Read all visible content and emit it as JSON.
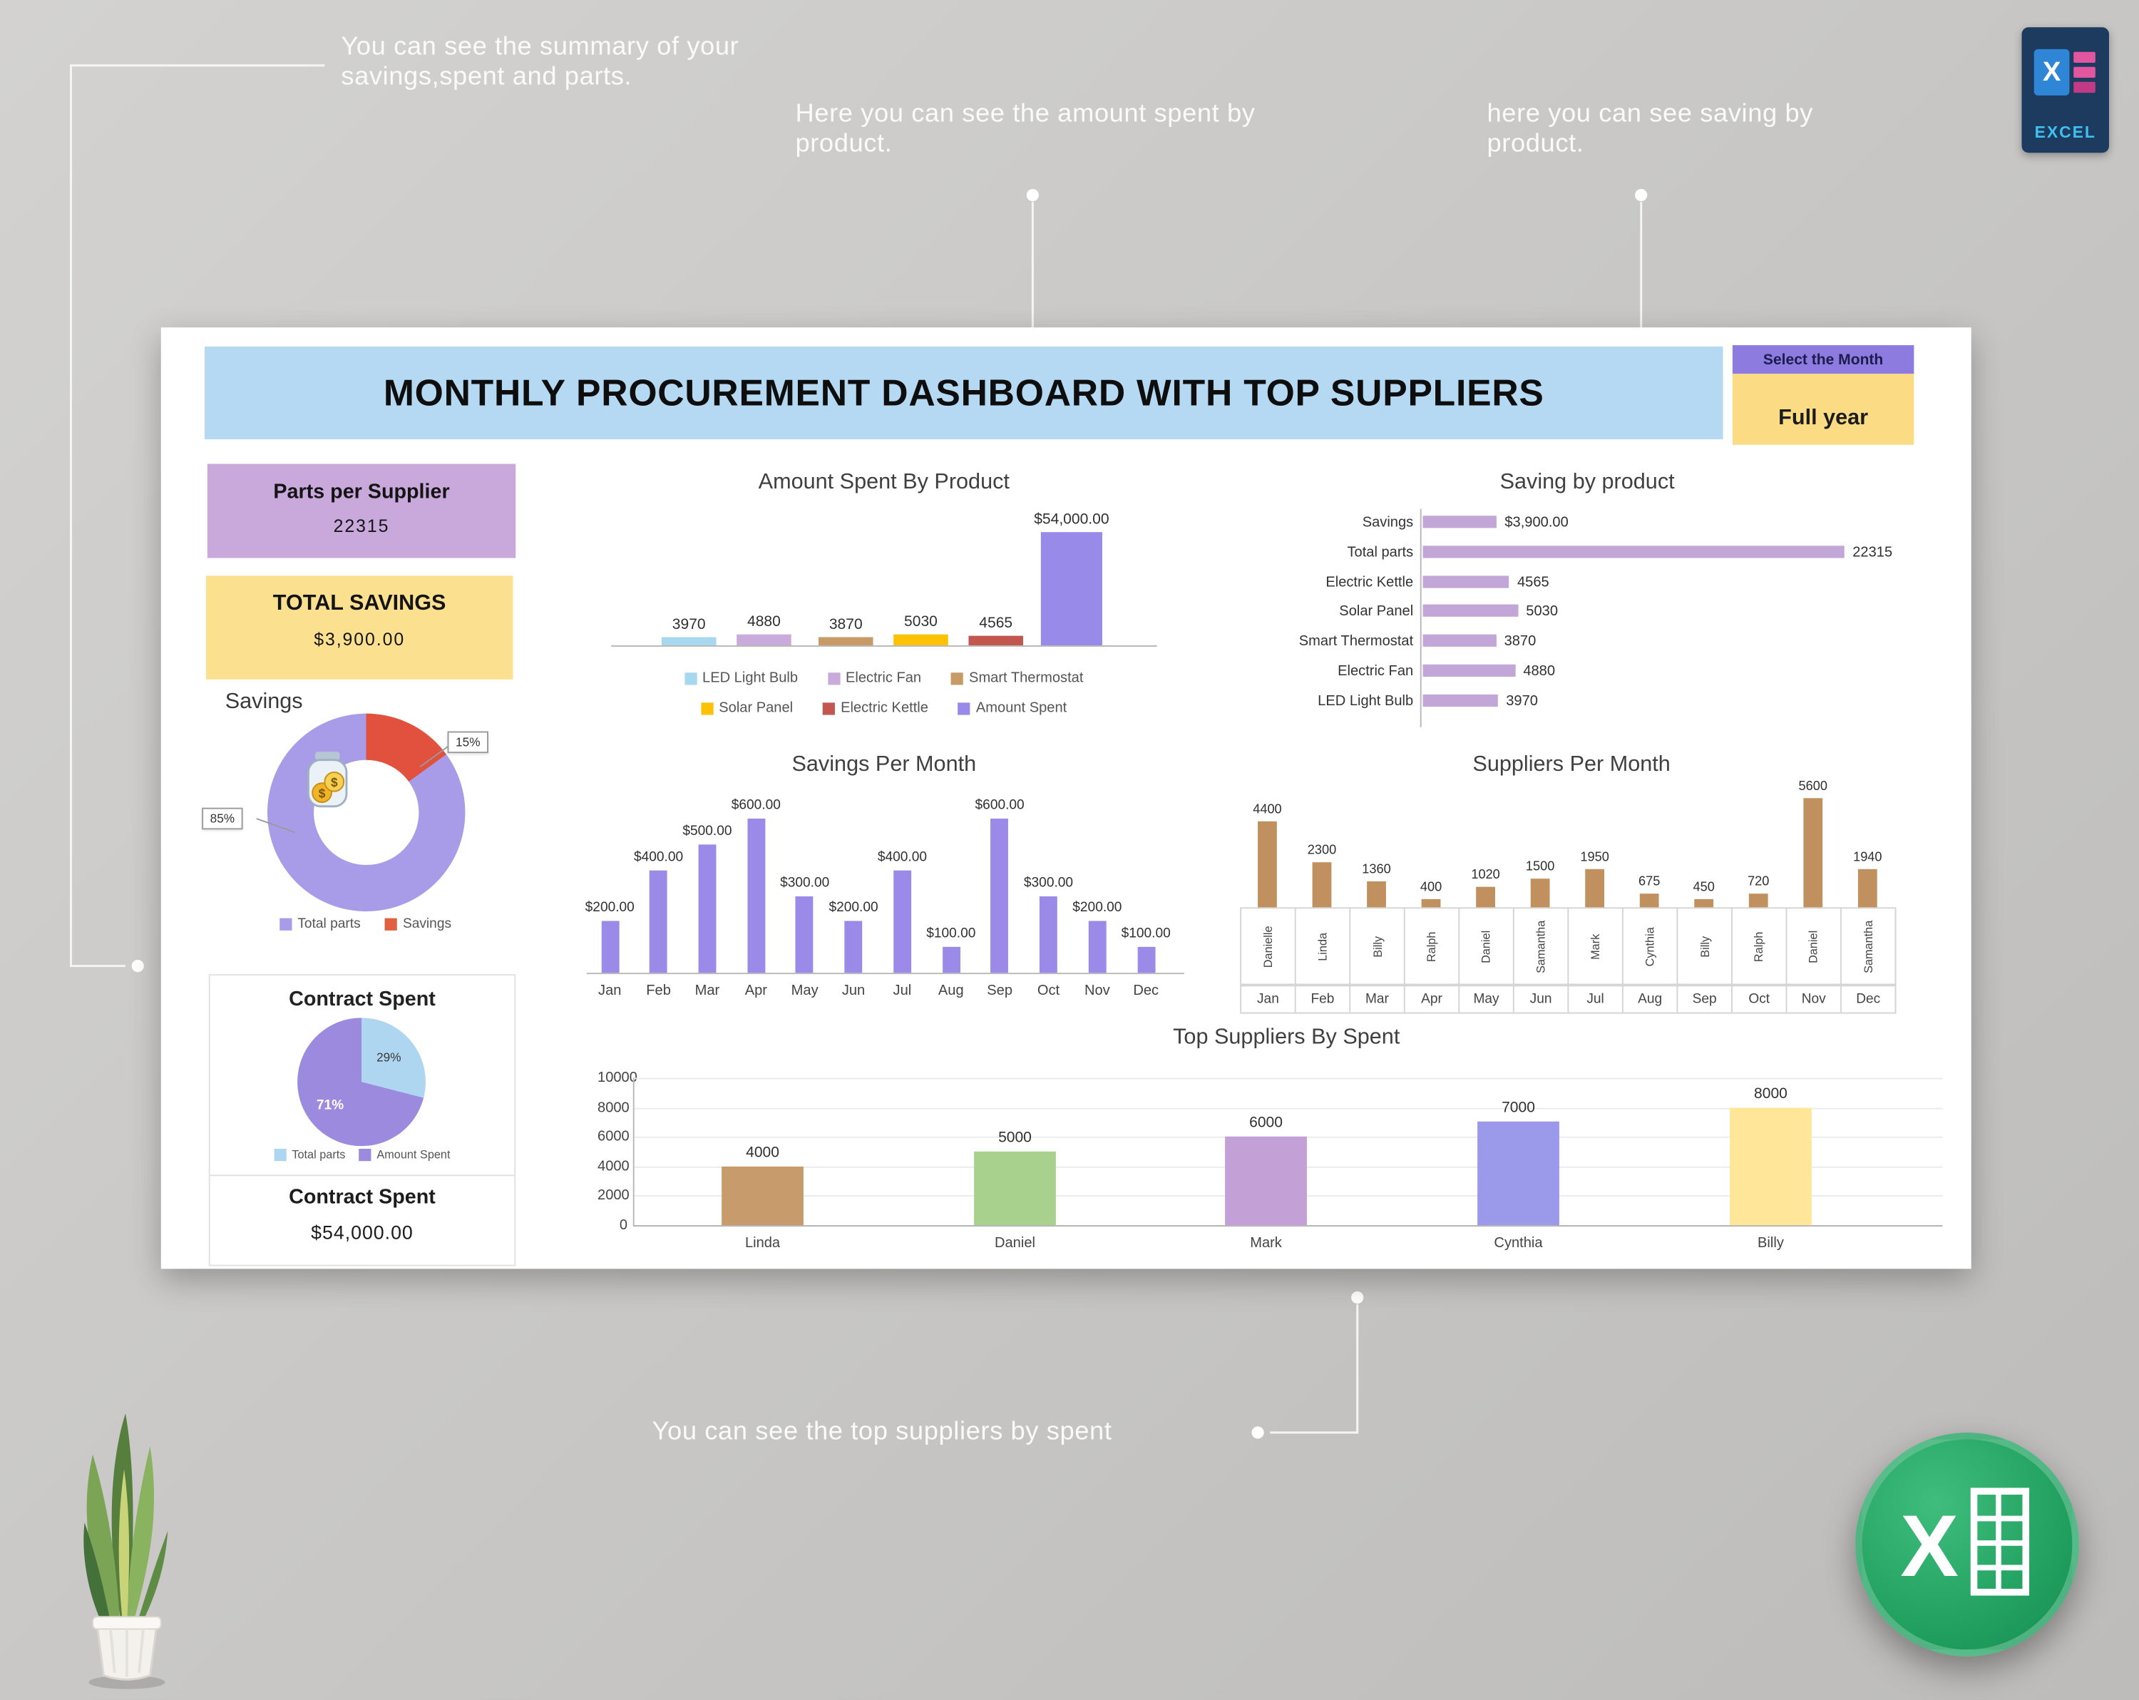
{
  "annotations": {
    "top_left": "You can see the summary of your savings,spent and parts.",
    "top_mid": "Here you can see the amount spent by product.",
    "top_right": "here you can see saving by product.",
    "bottom": "You can see the top suppliers by spent"
  },
  "header": {
    "title": "MONTHLY PROCUREMENT DASHBOARD WITH TOP SUPPLIERS",
    "select_month_label": "Select the Month",
    "select_month_value": "Full year"
  },
  "summary": {
    "parts_label": "Parts per Supplier",
    "parts_value": "22315",
    "savings_label": "TOTAL SAVINGS",
    "savings_value": "$3,900.00",
    "savings_section_title": "Savings",
    "contract_title": "Contract Spent",
    "contract_label": "Contract Spent",
    "contract_value": "$54,000.00"
  },
  "excel_badge_text": "EXCEL",
  "chart_data": [
    {
      "id": "savings_donut",
      "type": "pie",
      "slices": [
        {
          "name": "Total parts",
          "pct": 85,
          "label": "85%",
          "color": "#a89ce9"
        },
        {
          "name": "Savings",
          "pct": 15,
          "label": "15%",
          "color": "#e2513d"
        }
      ],
      "legend": [
        {
          "label": "Total parts",
          "color": "#a89ce9"
        },
        {
          "label": "Savings",
          "color": "#e2603f"
        }
      ]
    },
    {
      "id": "contract_pie",
      "type": "pie",
      "title": "Contract Spent",
      "slices": [
        {
          "name": "Total parts",
          "pct": 29,
          "label": "29%",
          "color": "#aed6f1"
        },
        {
          "name": "Amount Spent",
          "pct": 71,
          "label": "71%",
          "color": "#9c8ade"
        }
      ],
      "legend": [
        {
          "label": "Total parts",
          "color": "#aed6f1"
        },
        {
          "label": "Amount Spent",
          "color": "#9c8ade"
        }
      ]
    },
    {
      "id": "amount_by_product",
      "type": "bar",
      "title": "Amount Spent By Product",
      "ymax": 54000,
      "items": [
        {
          "label": "LED Light Bulb",
          "value": 3970,
          "value_label": "3970",
          "color": "#a8d8f0"
        },
        {
          "label": "Electric Fan",
          "value": 4880,
          "value_label": "4880",
          "color": "#c9abdb"
        },
        {
          "label": "Smart Thermostat",
          "value": 3870,
          "value_label": "3870",
          "color": "#c79a67"
        },
        {
          "label": "Solar Panel",
          "value": 5030,
          "value_label": "5030",
          "color": "#fdc105"
        },
        {
          "label": "Electric Kettle",
          "value": 4565,
          "value_label": "4565",
          "color": "#c2574f"
        },
        {
          "label": "Amount Spent",
          "value": 54000,
          "value_label": "$54,000.00",
          "color": "#988ae8"
        }
      ]
    },
    {
      "id": "saving_by_product",
      "type": "hbar",
      "title": "Saving by product",
      "color": "#c3a6d8",
      "xmax": 22315,
      "rows": [
        {
          "label": "Savings",
          "value": 3900,
          "value_label": "$3,900.00"
        },
        {
          "label": "Total parts",
          "value": 22315,
          "value_label": "22315"
        },
        {
          "label": "Electric Kettle",
          "value": 4565,
          "value_label": "4565"
        },
        {
          "label": "Solar Panel",
          "value": 5030,
          "value_label": "5030"
        },
        {
          "label": "Smart Thermostat",
          "value": 3870,
          "value_label": "3870"
        },
        {
          "label": "Electric Fan",
          "value": 4880,
          "value_label": "4880"
        },
        {
          "label": "LED Light Bulb",
          "value": 3970,
          "value_label": "3970"
        }
      ]
    },
    {
      "id": "savings_per_month",
      "type": "bar",
      "title": "Savings Per Month",
      "color": "#9b8ae8",
      "ymax": 640,
      "categories": [
        "Jan",
        "Feb",
        "Mar",
        "Apr",
        "May",
        "Jun",
        "Jul",
        "Aug",
        "Sep",
        "Oct",
        "Nov",
        "Dec"
      ],
      "values": [
        200,
        400,
        500,
        600,
        300,
        200,
        400,
        100,
        600,
        300,
        200,
        100
      ],
      "value_labels": [
        "$200.00",
        "$400.00",
        "$500.00",
        "$600.00",
        "$300.00",
        "$200.00",
        "$400.00",
        "$100.00",
        "$600.00",
        "$300.00",
        "$200.00",
        "$100.00"
      ]
    },
    {
      "id": "suppliers_per_month",
      "type": "bar",
      "title": "Suppliers Per Month",
      "color": "#c0905f",
      "ymax": 5600,
      "months": [
        "Jan",
        "Feb",
        "Mar",
        "Apr",
        "May",
        "Jun",
        "Jul",
        "Aug",
        "Sep",
        "Oct",
        "Nov",
        "Dec"
      ],
      "names": [
        "Danielle",
        "Linda",
        "Billy",
        "Ralph",
        "Daniel",
        "Samantha",
        "Mark",
        "Cynthia",
        "Billy",
        "Ralph",
        "Daniel",
        "Samantha"
      ],
      "values": [
        4400,
        2300,
        1360,
        400,
        1020,
        1500,
        1950,
        675,
        450,
        720,
        5600,
        1940
      ],
      "value_labels": [
        "4400",
        "2300",
        "1360",
        "400",
        "1020",
        "1500",
        "1950",
        "675",
        "450",
        "720",
        "5600",
        "1940"
      ]
    },
    {
      "id": "top_suppliers",
      "type": "bar",
      "title": "Top Suppliers By Spent",
      "ymax": 10000,
      "yticks": [
        0,
        2000,
        4000,
        6000,
        8000,
        10000
      ],
      "categories": [
        "Linda",
        "Daniel",
        "Mark",
        "Cynthia",
        "Billy"
      ],
      "values": [
        4000,
        5000,
        6000,
        7000,
        8000
      ],
      "value_labels": [
        "4000",
        "5000",
        "6000",
        "7000",
        "8000"
      ],
      "colors": [
        "#c89b6d",
        "#a9d18e",
        "#c3a0d6",
        "#9a99ea",
        "#ffe699"
      ]
    }
  ]
}
